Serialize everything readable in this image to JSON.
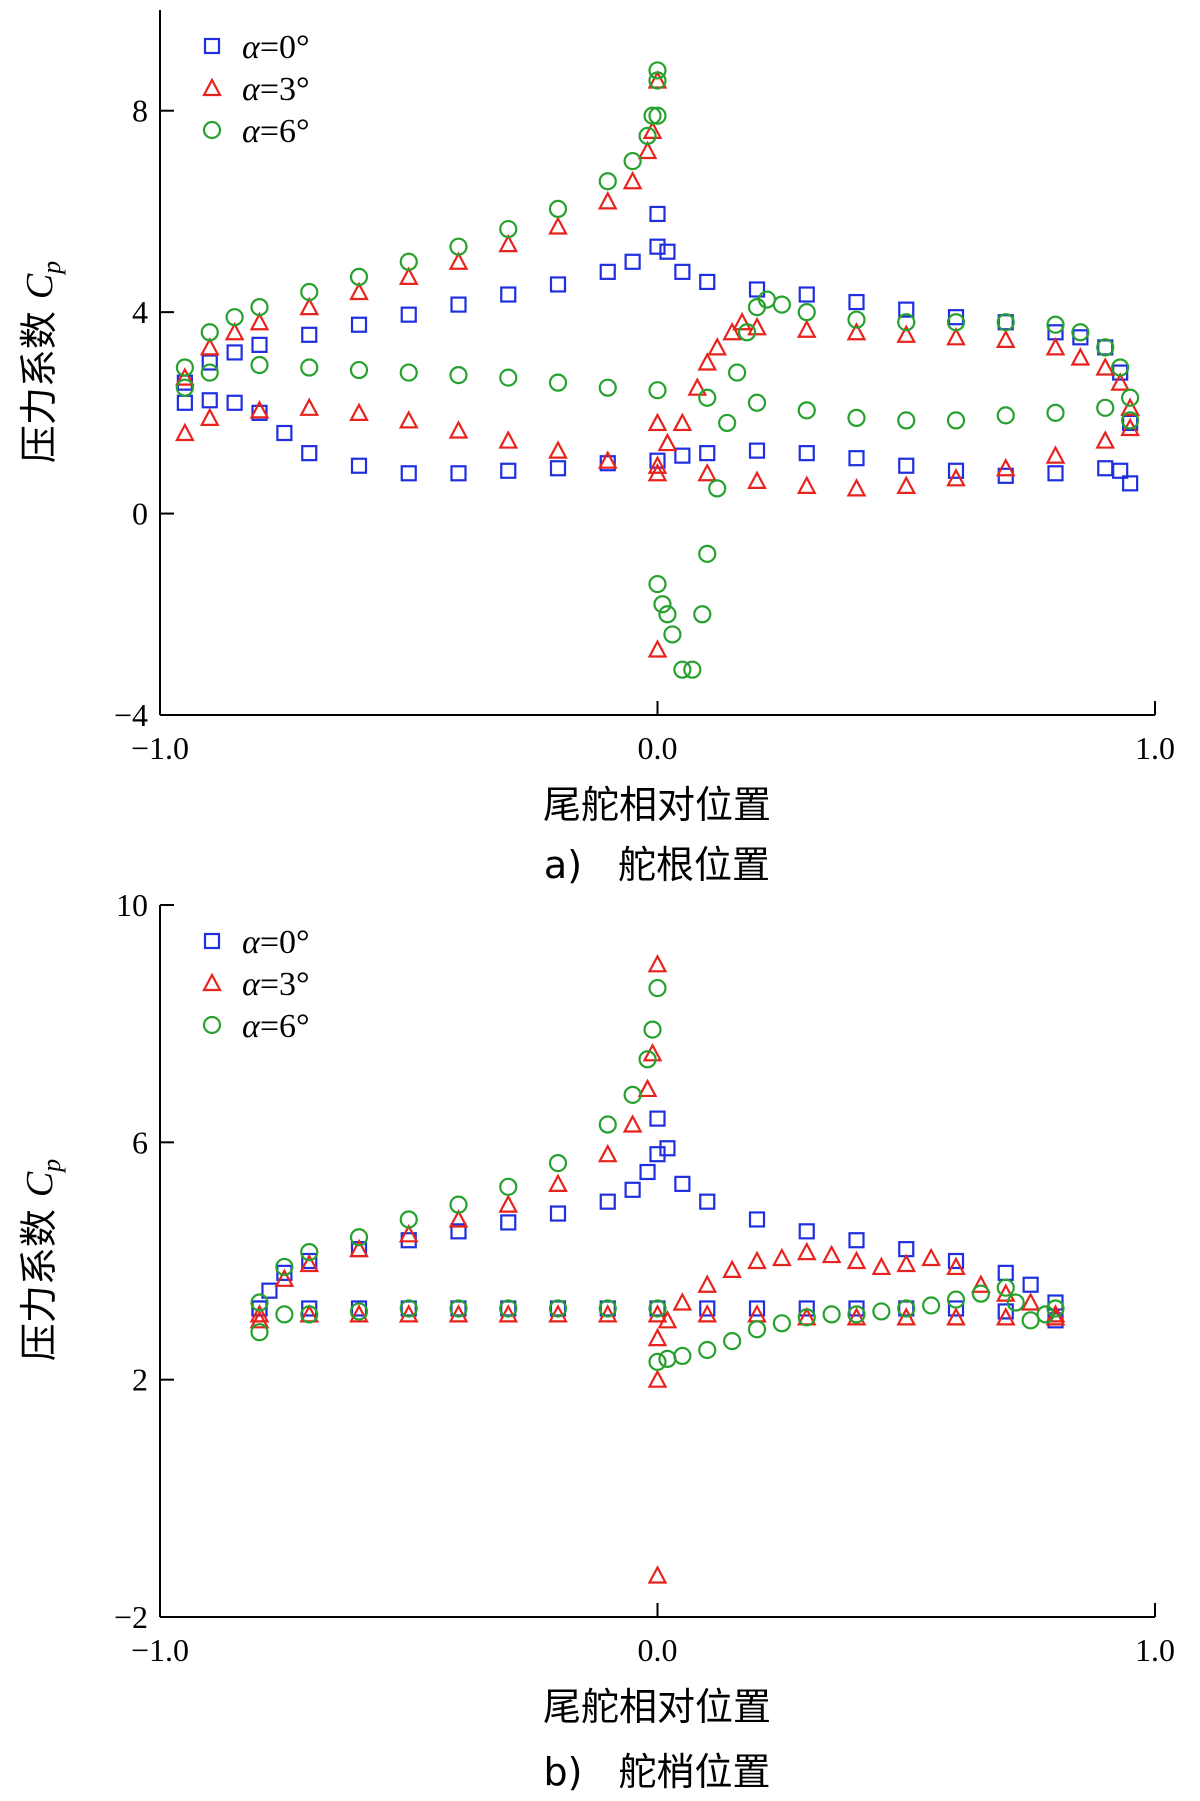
{
  "chart_data": [
    {
      "type": "scatter",
      "panel_label": "a)",
      "caption": "舵根位置",
      "xlabel": "尾舵相对位置",
      "ylabel": "压力系数",
      "ylabel_symbol": "C",
      "ylabel_subscript": "p",
      "xlim": [
        -1.0,
        1.0
      ],
      "ylim": [
        -4,
        10
      ],
      "xticks": [
        -1.0,
        0.0,
        1.0
      ],
      "xtick_labels": [
        "−1.0",
        "0.0",
        "1.0"
      ],
      "yticks": [
        -4,
        0,
        4,
        8
      ],
      "ytick_labels": [
        "−4",
        "0",
        "4",
        "8"
      ],
      "legend_position": "top-left",
      "series": [
        {
          "name": "α=0°",
          "legend_symbol": "α",
          "legend_value": "=0°",
          "marker": "square",
          "color": "#1f2fe0",
          "x": [
            -0.95,
            -0.9,
            -0.85,
            -0.8,
            -0.7,
            -0.6,
            -0.5,
            -0.4,
            -0.3,
            -0.2,
            -0.1,
            -0.05,
            0.0,
            0.0,
            0.02,
            0.05,
            0.1,
            0.2,
            0.3,
            0.4,
            0.5,
            0.6,
            0.7,
            0.8,
            0.85,
            0.9,
            0.93,
            0.95,
            -0.95,
            -0.9,
            -0.85,
            -0.8,
            -0.75,
            -0.7,
            -0.6,
            -0.5,
            -0.4,
            -0.3,
            -0.2,
            -0.1,
            0.0,
            0.05,
            0.1,
            0.2,
            0.3,
            0.4,
            0.5,
            0.6,
            0.7,
            0.8,
            0.9,
            0.93,
            0.95
          ],
          "y": [
            2.6,
            3.0,
            3.2,
            3.35,
            3.55,
            3.75,
            3.95,
            4.15,
            4.35,
            4.55,
            4.8,
            5.0,
            5.3,
            5.95,
            5.2,
            4.8,
            4.6,
            4.45,
            4.35,
            4.2,
            4.05,
            3.9,
            3.8,
            3.6,
            3.5,
            3.3,
            2.8,
            1.8,
            2.2,
            2.25,
            2.2,
            2.0,
            1.6,
            1.2,
            0.95,
            0.8,
            0.8,
            0.85,
            0.9,
            1.0,
            1.05,
            1.15,
            1.2,
            1.25,
            1.2,
            1.1,
            0.95,
            0.85,
            0.75,
            0.8,
            0.9,
            0.85,
            0.6
          ]
        },
        {
          "name": "α=3°",
          "legend_symbol": "α",
          "legend_value": "=3°",
          "marker": "triangle",
          "color": "#e8221c",
          "x": [
            -0.95,
            -0.9,
            -0.85,
            -0.8,
            -0.7,
            -0.6,
            -0.5,
            -0.4,
            -0.3,
            -0.2,
            -0.1,
            -0.05,
            -0.02,
            -0.01,
            0.0,
            0.0,
            0.0,
            0.0,
            0.02,
            0.05,
            0.08,
            0.1,
            0.12,
            0.15,
            0.17,
            0.2,
            0.3,
            0.4,
            0.5,
            0.6,
            0.7,
            0.8,
            0.85,
            0.9,
            0.93,
            0.95,
            -0.95,
            -0.9,
            -0.8,
            -0.7,
            -0.6,
            -0.5,
            -0.4,
            -0.3,
            -0.2,
            -0.1,
            0.0,
            0.1,
            0.2,
            0.3,
            0.4,
            0.5,
            0.6,
            0.7,
            0.8,
            0.9,
            0.95
          ],
          "y": [
            2.7,
            3.3,
            3.6,
            3.8,
            4.1,
            4.4,
            4.7,
            5.0,
            5.35,
            5.7,
            6.2,
            6.6,
            7.2,
            7.6,
            8.6,
            1.8,
            0.8,
            -2.7,
            1.4,
            1.8,
            2.5,
            3.0,
            3.3,
            3.6,
            3.8,
            3.7,
            3.65,
            3.6,
            3.55,
            3.5,
            3.45,
            3.3,
            3.1,
            2.9,
            2.6,
            2.1,
            1.6,
            1.9,
            2.05,
            2.1,
            2.0,
            1.85,
            1.65,
            1.45,
            1.25,
            1.05,
            0.95,
            0.8,
            0.65,
            0.55,
            0.5,
            0.55,
            0.7,
            0.9,
            1.15,
            1.45,
            1.7
          ]
        },
        {
          "name": "α=6°",
          "legend_symbol": "α",
          "legend_value": "=6°",
          "marker": "circle",
          "color": "#27a12e",
          "x": [
            -0.95,
            -0.9,
            -0.85,
            -0.8,
            -0.7,
            -0.6,
            -0.5,
            -0.4,
            -0.3,
            -0.2,
            -0.1,
            -0.05,
            -0.02,
            -0.01,
            0.0,
            0.0,
            0.0,
            0.0,
            0.01,
            0.02,
            0.03,
            0.05,
            0.07,
            0.09,
            0.1,
            0.12,
            0.14,
            0.16,
            0.18,
            0.2,
            0.22,
            0.25,
            0.3,
            0.4,
            0.5,
            0.6,
            0.7,
            0.8,
            0.85,
            0.9,
            0.93,
            0.95,
            -0.95,
            -0.9,
            -0.8,
            -0.7,
            -0.6,
            -0.5,
            -0.4,
            -0.3,
            -0.2,
            -0.1,
            0.0,
            0.1,
            0.2,
            0.3,
            0.4,
            0.5,
            0.6,
            0.7,
            0.8,
            0.9,
            0.95
          ],
          "y": [
            2.9,
            3.6,
            3.9,
            4.1,
            4.4,
            4.7,
            5.0,
            5.3,
            5.65,
            6.05,
            6.6,
            7.0,
            7.5,
            7.9,
            8.8,
            8.6,
            7.9,
            -1.4,
            -1.8,
            -2.0,
            -2.4,
            -3.1,
            -3.1,
            -2.0,
            -0.8,
            0.5,
            1.8,
            2.8,
            3.6,
            4.1,
            4.25,
            4.15,
            4.0,
            3.85,
            3.8,
            3.8,
            3.8,
            3.75,
            3.6,
            3.3,
            2.9,
            2.3,
            2.5,
            2.8,
            2.95,
            2.9,
            2.85,
            2.8,
            2.75,
            2.7,
            2.6,
            2.5,
            2.45,
            2.3,
            2.2,
            2.05,
            1.9,
            1.85,
            1.85,
            1.95,
            2.0,
            2.1,
            1.85
          ]
        }
      ]
    },
    {
      "type": "scatter",
      "panel_label": "b)",
      "caption": "舵梢位置",
      "xlabel": "尾舵相对位置",
      "ylabel": "压力系数",
      "ylabel_symbol": "C",
      "ylabel_subscript": "p",
      "xlim": [
        -1.0,
        1.0
      ],
      "ylim": [
        -2,
        10
      ],
      "xticks": [
        -1.0,
        0.0,
        1.0
      ],
      "xtick_labels": [
        "−1.0",
        "0.0",
        "1.0"
      ],
      "yticks": [
        -2,
        2,
        6,
        10
      ],
      "ytick_labels": [
        "−2",
        "2",
        "6",
        "10"
      ],
      "legend_position": "top-left",
      "series": [
        {
          "name": "α=0°",
          "legend_symbol": "α",
          "legend_value": "=0°",
          "marker": "square",
          "color": "#1f2fe0",
          "x": [
            -0.8,
            -0.78,
            -0.75,
            -0.7,
            -0.6,
            -0.5,
            -0.4,
            -0.3,
            -0.2,
            -0.1,
            -0.05,
            -0.02,
            0.0,
            0.0,
            0.02,
            0.05,
            0.1,
            0.2,
            0.3,
            0.4,
            0.5,
            0.6,
            0.7,
            0.75,
            0.8,
            -0.8,
            -0.7,
            -0.6,
            -0.5,
            -0.4,
            -0.3,
            -0.2,
            -0.1,
            0.0,
            0.1,
            0.2,
            0.3,
            0.4,
            0.5,
            0.6,
            0.7,
            0.8
          ],
          "y": [
            3.2,
            3.5,
            3.8,
            4.0,
            4.2,
            4.35,
            4.5,
            4.65,
            4.8,
            5.0,
            5.2,
            5.5,
            5.8,
            6.4,
            5.9,
            5.3,
            5.0,
            4.7,
            4.5,
            4.35,
            4.2,
            4.0,
            3.8,
            3.6,
            3.3,
            3.2,
            3.2,
            3.2,
            3.2,
            3.2,
            3.2,
            3.2,
            3.2,
            3.2,
            3.2,
            3.2,
            3.2,
            3.2,
            3.2,
            3.2,
            3.15,
            3.0
          ]
        },
        {
          "name": "α=3°",
          "legend_symbol": "α",
          "legend_value": "=3°",
          "marker": "triangle",
          "color": "#e8221c",
          "x": [
            -0.8,
            -0.75,
            -0.7,
            -0.6,
            -0.5,
            -0.4,
            -0.3,
            -0.2,
            -0.1,
            -0.05,
            -0.02,
            -0.01,
            0.0,
            0.0,
            0.0,
            0.0,
            0.02,
            0.05,
            0.1,
            0.15,
            0.2,
            0.25,
            0.3,
            0.35,
            0.4,
            0.45,
            0.5,
            0.55,
            0.6,
            0.65,
            0.7,
            0.75,
            0.8,
            -0.8,
            -0.7,
            -0.6,
            -0.5,
            -0.4,
            -0.3,
            -0.2,
            -0.1,
            0.0,
            0.1,
            0.2,
            0.3,
            0.4,
            0.5,
            0.6,
            0.7,
            0.8
          ],
          "y": [
            3.1,
            3.7,
            3.95,
            4.2,
            4.45,
            4.7,
            4.95,
            5.3,
            5.8,
            6.3,
            6.9,
            7.5,
            9.0,
            2.7,
            2.0,
            -1.3,
            3.0,
            3.3,
            3.6,
            3.85,
            4.0,
            4.05,
            4.15,
            4.1,
            4.0,
            3.9,
            3.95,
            4.05,
            3.9,
            3.6,
            3.45,
            3.3,
            3.1,
            3.0,
            3.1,
            3.1,
            3.1,
            3.1,
            3.1,
            3.1,
            3.1,
            3.1,
            3.1,
            3.1,
            3.05,
            3.05,
            3.05,
            3.05,
            3.05,
            3.05
          ]
        },
        {
          "name": "α=6°",
          "legend_symbol": "α",
          "legend_value": "=6°",
          "marker": "circle",
          "color": "#27a12e",
          "x": [
            -0.8,
            -0.75,
            -0.7,
            -0.6,
            -0.5,
            -0.4,
            -0.3,
            -0.2,
            -0.1,
            -0.05,
            -0.02,
            -0.01,
            0.0,
            0.0,
            0.02,
            0.05,
            0.1,
            0.15,
            0.2,
            0.25,
            0.3,
            0.35,
            0.4,
            0.45,
            0.5,
            0.55,
            0.6,
            0.65,
            0.7,
            0.72,
            0.75,
            0.78,
            0.8,
            -0.8,
            -0.75,
            -0.7,
            -0.6,
            -0.5,
            -0.4,
            -0.3,
            -0.2,
            -0.1,
            0.0
          ],
          "y": [
            3.3,
            3.9,
            4.15,
            4.4,
            4.7,
            4.95,
            5.25,
            5.65,
            6.3,
            6.8,
            7.4,
            7.9,
            8.6,
            2.3,
            2.35,
            2.4,
            2.5,
            2.65,
            2.85,
            2.95,
            3.05,
            3.1,
            3.1,
            3.15,
            3.2,
            3.25,
            3.35,
            3.45,
            3.55,
            3.3,
            3.0,
            3.1,
            3.2,
            2.8,
            3.1,
            3.1,
            3.15,
            3.2,
            3.2,
            3.2,
            3.2,
            3.2,
            3.2
          ]
        }
      ]
    }
  ]
}
